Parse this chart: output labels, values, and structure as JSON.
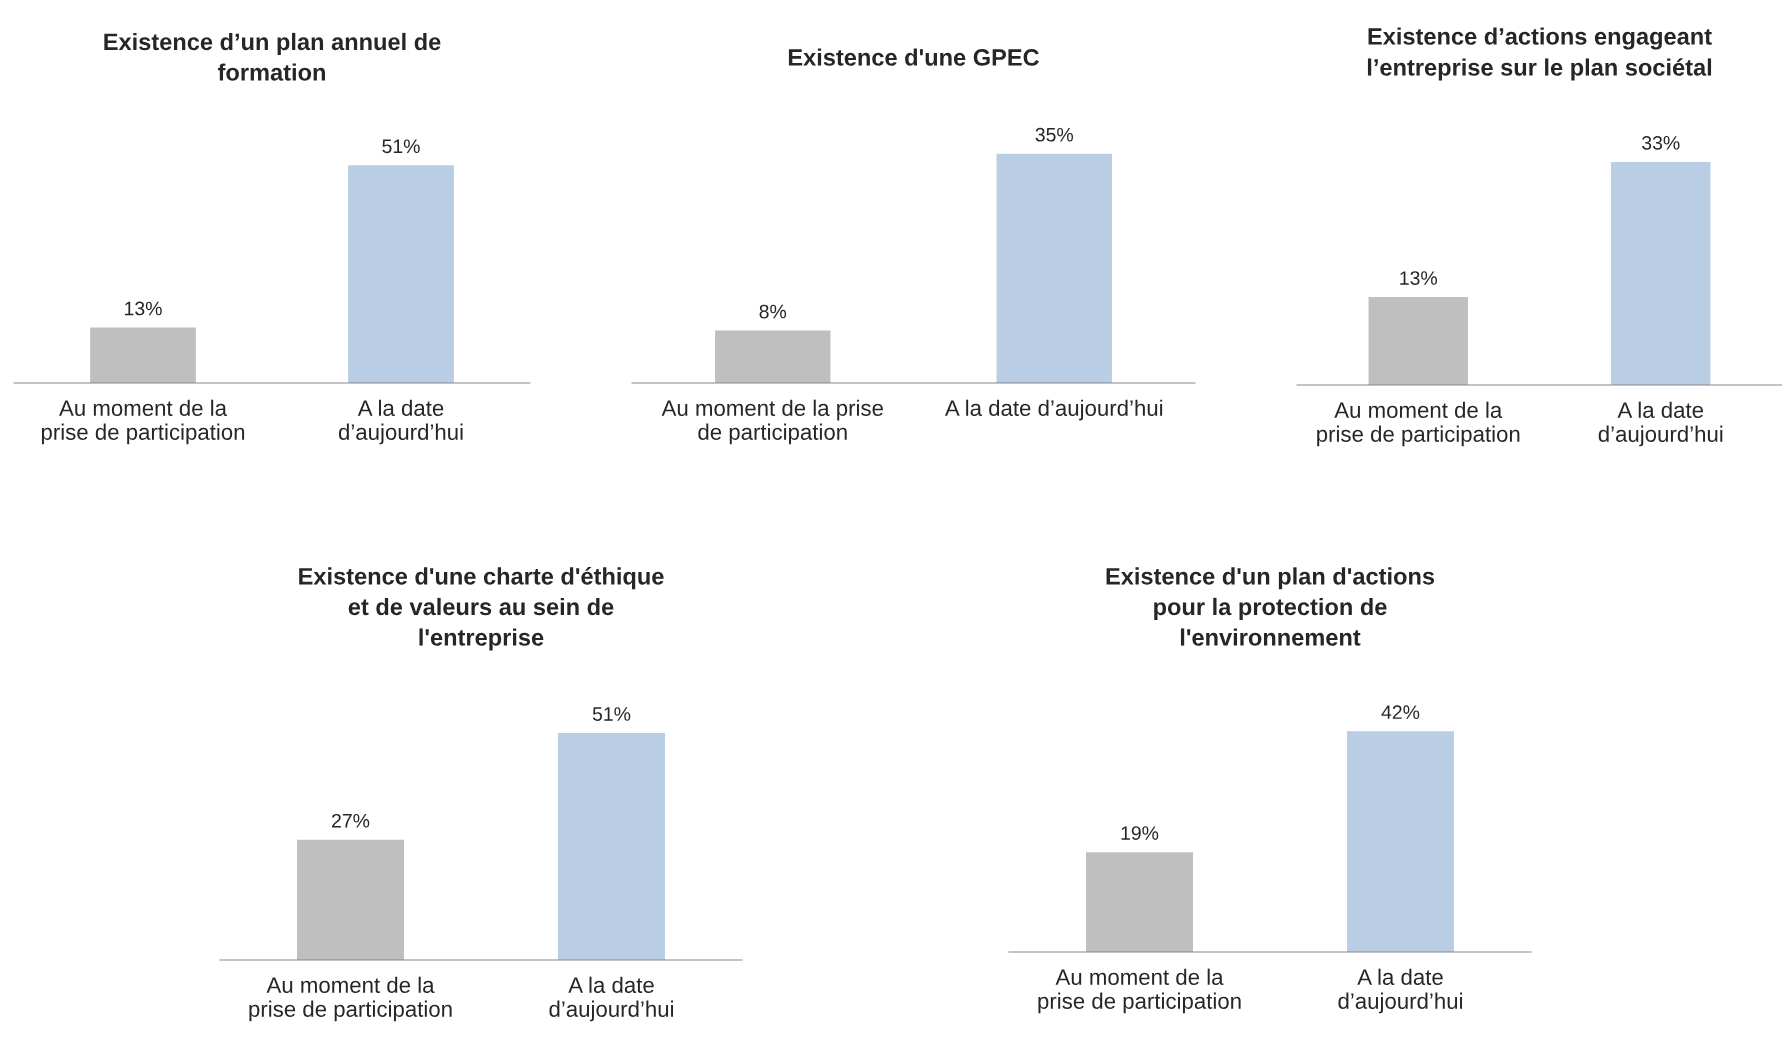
{
  "chart_data": [
    {
      "type": "bar",
      "title": "Existence d’un plan annuel de\nformation",
      "categories": [
        "Au moment de la\nprise de participation",
        "A la date\nd’aujourd’hui"
      ],
      "values": [
        13,
        51
      ],
      "value_labels": [
        "13%",
        "51%"
      ],
      "colors": [
        "#bfbfbf",
        "#b9cde5"
      ],
      "tick_labels": "x",
      "grid": false,
      "legend": false
    },
    {
      "type": "bar",
      "title": "Existence d'une GPEC",
      "categories": [
        "Au moment de la prise\nde participation",
        "A la date d’aujourd’hui"
      ],
      "values": [
        8,
        35
      ],
      "value_labels": [
        "8%",
        "35%"
      ],
      "colors": [
        "#bfbfbf",
        "#b9cde5"
      ],
      "tick_labels": "x",
      "grid": false,
      "legend": false
    },
    {
      "type": "bar",
      "title": "Existence d’actions engageant\nl’entreprise sur le plan sociétal",
      "categories": [
        "Au moment de la\nprise de participation",
        "A la date\nd’aujourd’hui"
      ],
      "values": [
        13,
        33
      ],
      "value_labels": [
        "13%",
        "33%"
      ],
      "colors": [
        "#bfbfbf",
        "#b9cde5"
      ],
      "tick_labels": "x",
      "grid": false,
      "legend": false
    },
    {
      "type": "bar",
      "title": "Existence d'une charte d'éthique\net de valeurs au sein de\nl'entreprise",
      "categories": [
        "Au moment de la\nprise de participation",
        "A la date\nd’aujourd’hui"
      ],
      "values": [
        27,
        51
      ],
      "value_labels": [
        "27%",
        "51%"
      ],
      "colors": [
        "#bfbfbf",
        "#b9cde5"
      ],
      "tick_labels": "x",
      "grid": false,
      "legend": false
    },
    {
      "type": "bar",
      "title": "Existence d'un plan d'actions\npour la protection de\nl'environnement",
      "categories": [
        "Au moment de la\nprise de participation",
        "A la date\nd’aujourd’hui"
      ],
      "values": [
        19,
        42
      ],
      "value_labels": [
        "19%",
        "42%"
      ],
      "colors": [
        "#bfbfbf",
        "#b9cde5"
      ],
      "tick_labels": "x",
      "grid": false,
      "legend": false
    }
  ]
}
